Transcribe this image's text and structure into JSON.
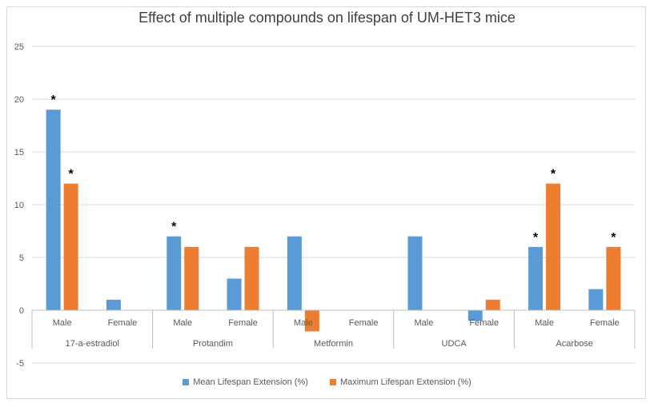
{
  "chart_data": {
    "type": "bar",
    "title": "Effect of multiple compounds on lifespan of UM-HET3 mice",
    "xlabel": "",
    "ylabel": "",
    "ylim": [
      -5,
      25
    ],
    "yticks": [
      -5,
      0,
      5,
      10,
      15,
      20,
      25
    ],
    "grid": true,
    "legend_position": "bottom",
    "groups": [
      "17-a-estradiol",
      "Protandim",
      "Metformin",
      "UDCA",
      "Acarbose"
    ],
    "subcategories": [
      "Male",
      "Female"
    ],
    "categories": [
      "Male",
      "Female",
      "Male",
      "Female",
      "Male",
      "Female",
      "Male",
      "Female",
      "Male",
      "Female"
    ],
    "series": [
      {
        "name": "Mean Lifespan Extension (%)",
        "color": "#5b9bd5",
        "values": [
          19,
          1,
          7,
          3,
          7,
          0,
          7,
          -1,
          6,
          2
        ],
        "significant": [
          true,
          false,
          true,
          false,
          false,
          false,
          false,
          false,
          true,
          false
        ]
      },
      {
        "name": "Maximum Lifespan Extension (%)",
        "color": "#ed7d31",
        "values": [
          12,
          0,
          6,
          6,
          -2,
          0,
          0,
          1,
          12,
          6
        ],
        "significant": [
          true,
          false,
          false,
          false,
          false,
          false,
          false,
          false,
          true,
          true
        ]
      }
    ],
    "significance_marker": "*"
  }
}
